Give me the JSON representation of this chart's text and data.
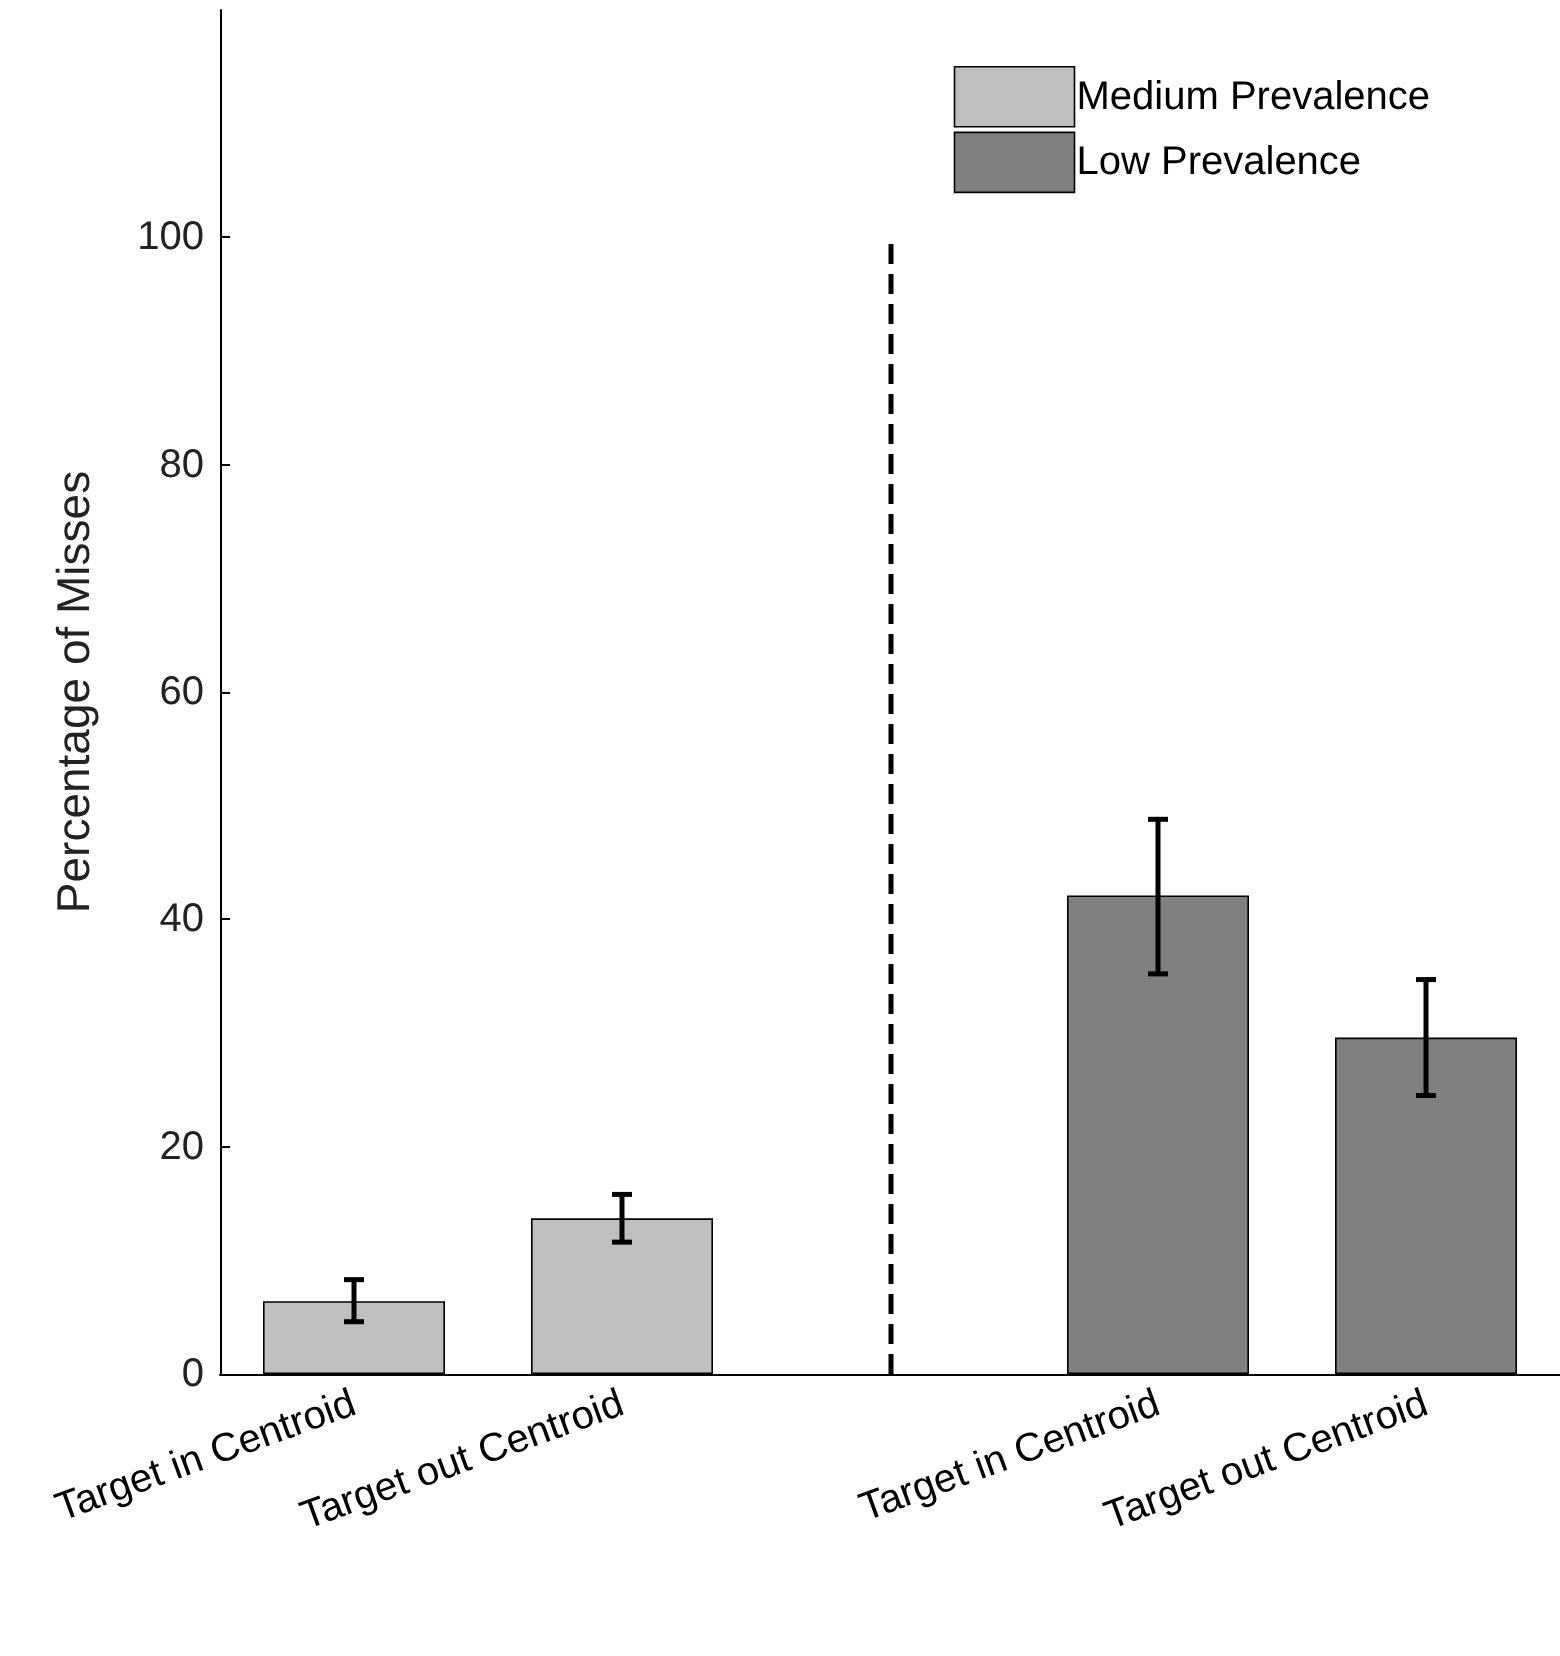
{
  "chart_data": {
    "type": "bar",
    "ylabel": "Percentage of Misses",
    "categories": [
      "Target in Centroid",
      "Target out Centroid",
      null,
      "Target in Centroid",
      "Target out Centroid"
    ],
    "series": [
      {
        "name": "Medium Prevalence",
        "color": "#bfbfbf",
        "values": [
          6.4,
          13.7,
          null,
          null,
          null
        ],
        "errors": [
          [
            4.6,
            8.3
          ],
          [
            11.6,
            15.8
          ],
          null,
          null,
          null
        ]
      },
      {
        "name": "Low Prevalence",
        "color": "#808080",
        "values": [
          null,
          null,
          null,
          42.1,
          29.6
        ],
        "errors": [
          null,
          null,
          null,
          [
            35.2,
            48.8
          ],
          [
            24.5,
            34.7
          ]
        ]
      }
    ],
    "ylim": [
      0,
      120
    ],
    "yticks": [
      0,
      20,
      40,
      60,
      80,
      100
    ],
    "legend": "top right"
  }
}
